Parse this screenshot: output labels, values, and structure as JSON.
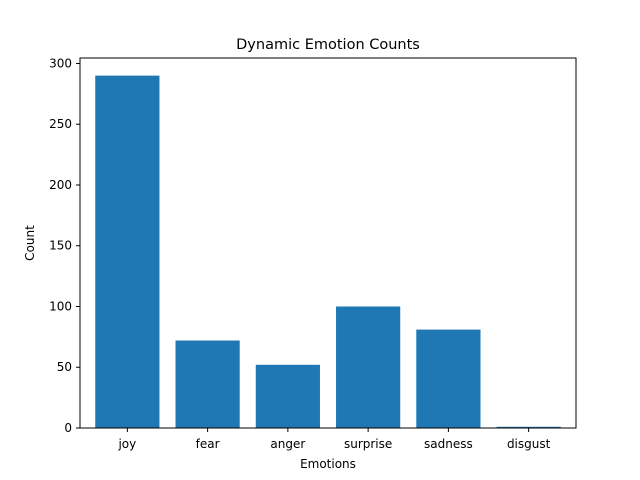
{
  "chart_data": {
    "type": "bar",
    "title": "Dynamic Emotion Counts",
    "xlabel": "Emotions",
    "ylabel": "Count",
    "categories": [
      "joy",
      "fear",
      "anger",
      "surprise",
      "sadness",
      "disgust"
    ],
    "values": [
      290,
      72,
      52,
      100,
      81,
      1
    ],
    "ylim": [
      0,
      304.5
    ],
    "yticks": [
      "0",
      "50",
      "100",
      "150",
      "200",
      "250",
      "300"
    ],
    "grid": false,
    "legend": "none",
    "bar_color": "#1f77b4"
  }
}
